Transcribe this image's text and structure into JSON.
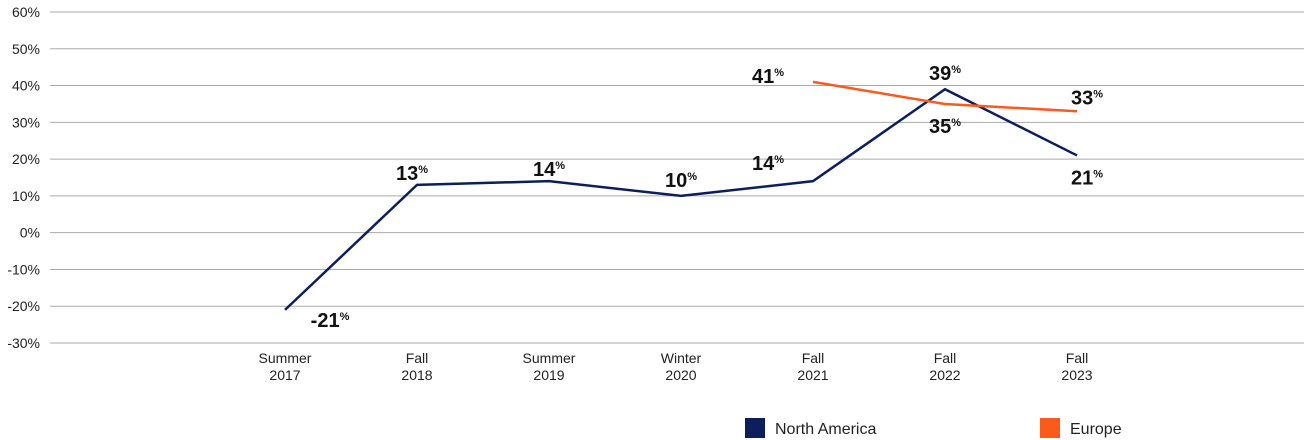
{
  "chart_data": {
    "type": "line",
    "categories": [
      "Summer\n2017",
      "Fall\n2018",
      "Summer\n2019",
      "Winter\n2020",
      "Fall\n2021",
      "Fall\n2022",
      "Fall\n2023"
    ],
    "series": [
      {
        "name": "North America",
        "color": "#0c1f5c",
        "values": [
          -21,
          13,
          14,
          10,
          14,
          39,
          21
        ],
        "value_labels": [
          "-21%",
          "13%",
          "14%",
          "10%",
          "14%",
          "39%",
          "21%"
        ]
      },
      {
        "name": "Europe",
        "color": "#fa5a1a",
        "values": [
          null,
          null,
          null,
          null,
          41,
          35,
          33
        ],
        "value_labels": [
          null,
          null,
          null,
          null,
          "41%",
          "35%",
          "33%"
        ]
      }
    ],
    "ylim": [
      -30,
      60
    ],
    "yticks": [
      {
        "value": -30,
        "label": "-30%"
      },
      {
        "value": -20,
        "label": "-20%"
      },
      {
        "value": -10,
        "label": "-10%"
      },
      {
        "value": 0,
        "label": "0%"
      },
      {
        "value": 10,
        "label": "10%"
      },
      {
        "value": 20,
        "label": "20%"
      },
      {
        "value": 30,
        "label": "30%"
      },
      {
        "value": 40,
        "label": "40%"
      },
      {
        "value": 50,
        "label": "50%"
      },
      {
        "value": 60,
        "label": "60%"
      }
    ],
    "grid": true
  }
}
